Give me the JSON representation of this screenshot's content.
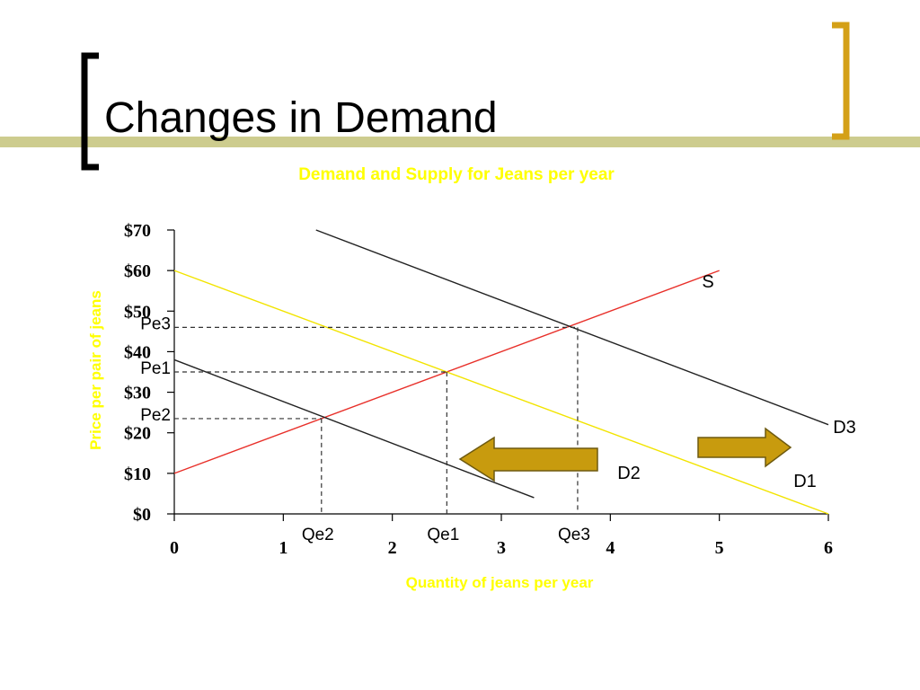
{
  "slide": {
    "title": "Changes in Demand",
    "colors": {
      "accent_gold": "#D4A017",
      "title_bar": "#CDCC8E",
      "chart_text_yellow": "#FFFF00",
      "arrow_fill": "#C89B0E"
    }
  },
  "chart_data": {
    "type": "line",
    "title": "Demand and Supply for Jeans per year",
    "xlabel": "Quantity of jeans per year",
    "ylabel": "Price per pair of jeans",
    "xlim": [
      0,
      6
    ],
    "ylim": [
      0,
      70
    ],
    "x_ticks": [
      "0",
      "1",
      "2",
      "3",
      "4",
      "5",
      "6"
    ],
    "y_ticks": [
      "$0",
      "$10",
      "$20",
      "$30",
      "$40",
      "$50",
      "$60",
      "$70"
    ],
    "grid": false,
    "series": [
      {
        "name": "S",
        "color": "#E8302A",
        "points": [
          [
            0,
            10
          ],
          [
            5,
            60
          ]
        ]
      },
      {
        "name": "D1",
        "color": "#F2E400",
        "points": [
          [
            0,
            60
          ],
          [
            6,
            0
          ]
        ]
      },
      {
        "name": "D2",
        "color": "#222222",
        "points": [
          [
            0,
            38
          ],
          [
            3.3,
            4
          ]
        ]
      },
      {
        "name": "D3",
        "color": "#222222",
        "points": [
          [
            1.3,
            70
          ],
          [
            6,
            22
          ]
        ]
      }
    ],
    "equilibria": [
      {
        "price_label": "Pe3",
        "quantity_label": "Qe3",
        "q": 3.7,
        "p": 46
      },
      {
        "price_label": "Pe1",
        "quantity_label": "Qe1",
        "q": 2.5,
        "p": 35
      },
      {
        "price_label": "Pe2",
        "quantity_label": "Qe2",
        "q": 1.35,
        "p": 23.5
      }
    ],
    "annotations": {
      "shift_left": "decrease in demand (D1 to D2)",
      "shift_right": "increase in demand (D1 to D3)"
    }
  }
}
